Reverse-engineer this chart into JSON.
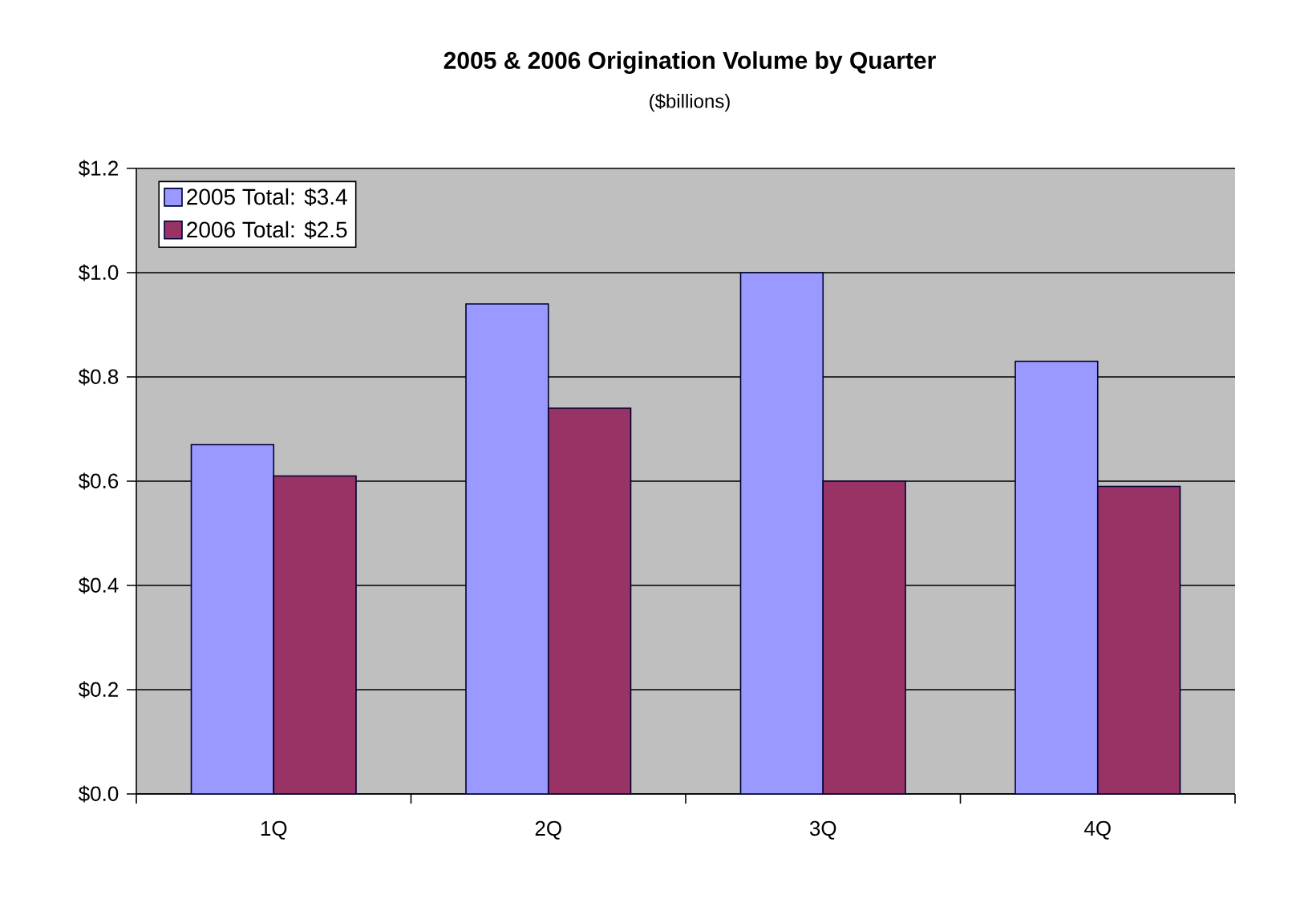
{
  "chart_data": {
    "type": "bar",
    "title": "2005 & 2006 Origination Volume by Quarter",
    "subtitle": "($billions)",
    "categories": [
      "1Q",
      "2Q",
      "3Q",
      "4Q"
    ],
    "series": [
      {
        "name": "2005 Total: $3.4",
        "color": "#9999ff",
        "values": [
          0.67,
          0.94,
          1.0,
          0.83
        ]
      },
      {
        "name": "2006 Total: $2.5",
        "color": "#993366",
        "values": [
          0.61,
          0.74,
          0.6,
          0.59
        ]
      }
    ],
    "ylim": [
      0,
      1.2
    ],
    "yticks": [
      {
        "value": 0,
        "label": "$0.0"
      },
      {
        "value": 0.2,
        "label": "$0.2"
      },
      {
        "value": 0.4,
        "label": "$0.4"
      },
      {
        "value": 0.6,
        "label": "$0.6"
      },
      {
        "value": 0.8,
        "label": "$0.8"
      },
      {
        "value": 1.0,
        "label": "$1.0"
      },
      {
        "value": 1.2,
        "label": "$1.2"
      }
    ],
    "grid": "y",
    "legend": "top left"
  }
}
